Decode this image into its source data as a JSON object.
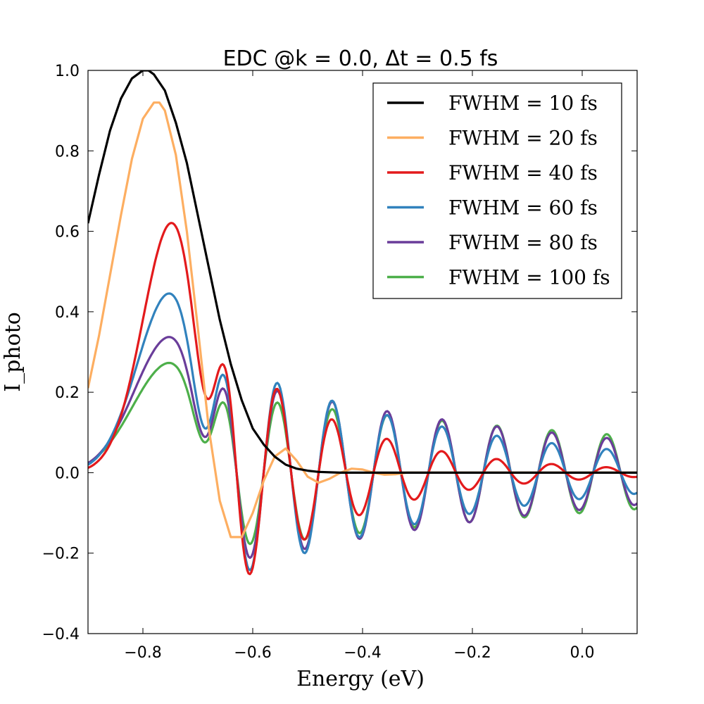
{
  "chart_data": {
    "type": "line",
    "title": "EDC @k = 0.0, Δt = 0.5 fs",
    "xlabel": "Energy (eV)",
    "ylabel": "I_photo",
    "xlim": [
      -0.9,
      0.1
    ],
    "ylim": [
      -0.4,
      1.0
    ],
    "xticks": [
      -0.8,
      -0.6,
      -0.4,
      -0.2,
      0.0
    ],
    "xtick_labels": [
      "−0.8",
      "−0.6",
      "−0.4",
      "−0.2",
      "0.0"
    ],
    "yticks": [
      1.0,
      0.8,
      0.6,
      0.4,
      0.2,
      0.0,
      -0.2,
      -0.4
    ],
    "ytick_labels": [
      "1.0",
      "0.8",
      "0.6",
      "0.4",
      "0.2",
      "0.0",
      "−0.2",
      "−0.4"
    ],
    "grid": false,
    "legend_position": "top-right",
    "series": [
      {
        "name": "FWHM = 10 fs",
        "color": "#000000",
        "x": [
          -0.9,
          -0.88,
          -0.86,
          -0.84,
          -0.82,
          -0.8,
          -0.79,
          -0.78,
          -0.76,
          -0.74,
          -0.72,
          -0.7,
          -0.68,
          -0.66,
          -0.64,
          -0.62,
          -0.6,
          -0.58,
          -0.56,
          -0.54,
          -0.52,
          -0.5,
          -0.48,
          -0.46,
          -0.44,
          -0.4,
          -0.3,
          -0.2,
          -0.1,
          0.0,
          0.1
        ],
        "y": [
          0.62,
          0.74,
          0.85,
          0.93,
          0.98,
          1.0,
          1.0,
          0.99,
          0.95,
          0.87,
          0.77,
          0.64,
          0.51,
          0.38,
          0.27,
          0.18,
          0.11,
          0.07,
          0.04,
          0.02,
          0.01,
          0.005,
          0.002,
          0.001,
          0.0,
          0.0,
          0.0,
          0.0,
          0.0,
          0.0,
          0.0
        ]
      },
      {
        "name": "FWHM = 20 fs",
        "color": "#FDAE61",
        "x": [
          -0.9,
          -0.88,
          -0.86,
          -0.84,
          -0.82,
          -0.8,
          -0.78,
          -0.77,
          -0.76,
          -0.74,
          -0.72,
          -0.7,
          -0.68,
          -0.66,
          -0.64,
          -0.62,
          -0.6,
          -0.58,
          -0.56,
          -0.54,
          -0.52,
          -0.5,
          -0.48,
          -0.46,
          -0.44,
          -0.42,
          -0.4,
          -0.38,
          -0.36,
          -0.34,
          -0.32,
          -0.3,
          -0.25,
          -0.2,
          -0.1,
          0.0,
          0.1
        ],
        "y": [
          0.21,
          0.34,
          0.49,
          0.64,
          0.78,
          0.88,
          0.92,
          0.92,
          0.9,
          0.79,
          0.6,
          0.36,
          0.11,
          -0.07,
          -0.16,
          -0.16,
          -0.1,
          -0.02,
          0.04,
          0.06,
          0.03,
          -0.01,
          -0.025,
          -0.015,
          0.0,
          0.01,
          0.008,
          0.0,
          -0.005,
          -0.004,
          0.0,
          0.0,
          0.0,
          0.0,
          0.0,
          0.0,
          0.0
        ]
      },
      {
        "name": "FWHM = 40 fs",
        "color": "#E31A1C",
        "amp": 0.63,
        "center": -0.745,
        "sigma": 0.055,
        "env_sigma": 0.22,
        "osc_period": 0.1,
        "osc_phase": -0.555,
        "osc_amp": 0.3
      },
      {
        "name": "FWHM = 60 fs",
        "color": "#3182BD",
        "amp": 0.45,
        "center": -0.75,
        "sigma": 0.06,
        "env_sigma": 0.45,
        "osc_period": 0.1,
        "osc_phase": -0.555,
        "osc_amp": 0.27
      },
      {
        "name": "FWHM = 80 fs",
        "color": "#6A3D9A",
        "amp": 0.34,
        "center": -0.75,
        "sigma": 0.065,
        "env_sigma": 0.7,
        "osc_period": 0.1,
        "osc_phase": -0.555,
        "osc_amp": 0.23
      },
      {
        "name": "FWHM = 100 fs",
        "color": "#4DAF4A",
        "amp": 0.275,
        "center": -0.75,
        "sigma": 0.068,
        "env_sigma": 1.0,
        "osc_period": 0.1,
        "osc_phase": -0.555,
        "osc_amp": 0.19
      }
    ]
  }
}
